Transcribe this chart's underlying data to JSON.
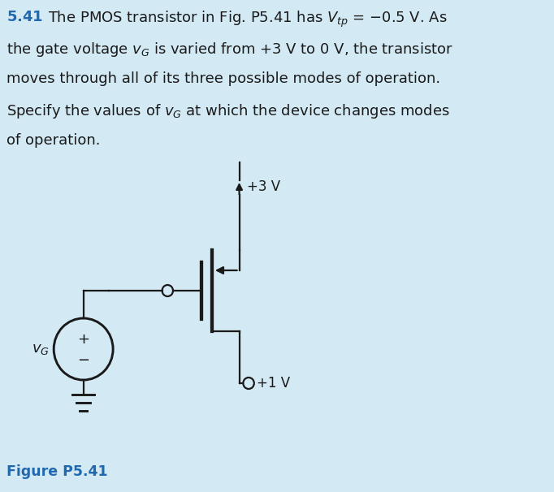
{
  "bg_color": "#d3eaf5",
  "fig_width": 6.82,
  "fig_height": 6.06,
  "text_color_blue": "#2068b0",
  "text_color_black": "#1a1a1a",
  "figure_label": "Figure P5.41",
  "vdd_label": "+3 V",
  "vss_label": "+1 V",
  "line_width": 1.6,
  "font_size_text": 13.0,
  "font_size_circuit": 12.0
}
